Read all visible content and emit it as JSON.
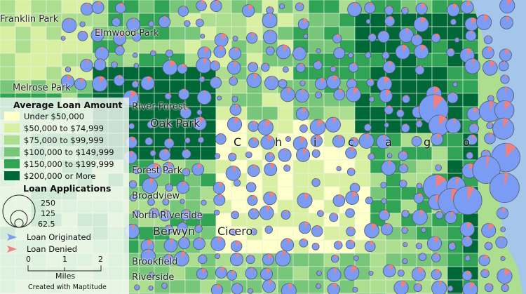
{
  "places": {
    "franklin_park": "Franklin Park",
    "elmwood_park": "Elmwood Park",
    "melrose_park": "Melrose Park",
    "river_forest": "River Forest",
    "oak_park": "Oak Park",
    "forest_park": "Forest Park",
    "broadview": "Broadview",
    "north_riverside": "North Riverside",
    "brookfield": "Brookfield",
    "riverside": "Riverside",
    "berwyn": "Berwyn",
    "cicero": "Cicero",
    "chicago_letters": [
      "C",
      "h",
      "i",
      "c",
      "a",
      "g",
      "o"
    ]
  },
  "legend": {
    "fill_title": "Average Loan Amount",
    "classes": [
      {
        "label": "Under $50,000",
        "color": "#ffffcc"
      },
      {
        "label": "$50,000 to $74,999",
        "color": "#d9f0a3"
      },
      {
        "label": "$75,000 to $99,999",
        "color": "#addd8e"
      },
      {
        "label": "$100,000 to $149,999",
        "color": "#78c679"
      },
      {
        "label": "$150,000 to $199,999",
        "color": "#31a354"
      },
      {
        "label": "$200,000 or More",
        "color": "#006837"
      }
    ],
    "size_title": "Loan Applications",
    "sizes": [
      "250",
      "125",
      "62.5"
    ],
    "pie_items": [
      {
        "label": "Loan Originated",
        "color": "#7b9cf5"
      },
      {
        "label": "Loan Denied",
        "color": "#f08080"
      }
    ],
    "scale": {
      "ticks": [
        "0",
        "1",
        "2"
      ],
      "unit": "Miles"
    },
    "credit": "Created with Maptitude"
  },
  "colors": {
    "lake": "#a3c6ea",
    "boundary": "#e6f2df",
    "pie_outline": "#555a66"
  }
}
